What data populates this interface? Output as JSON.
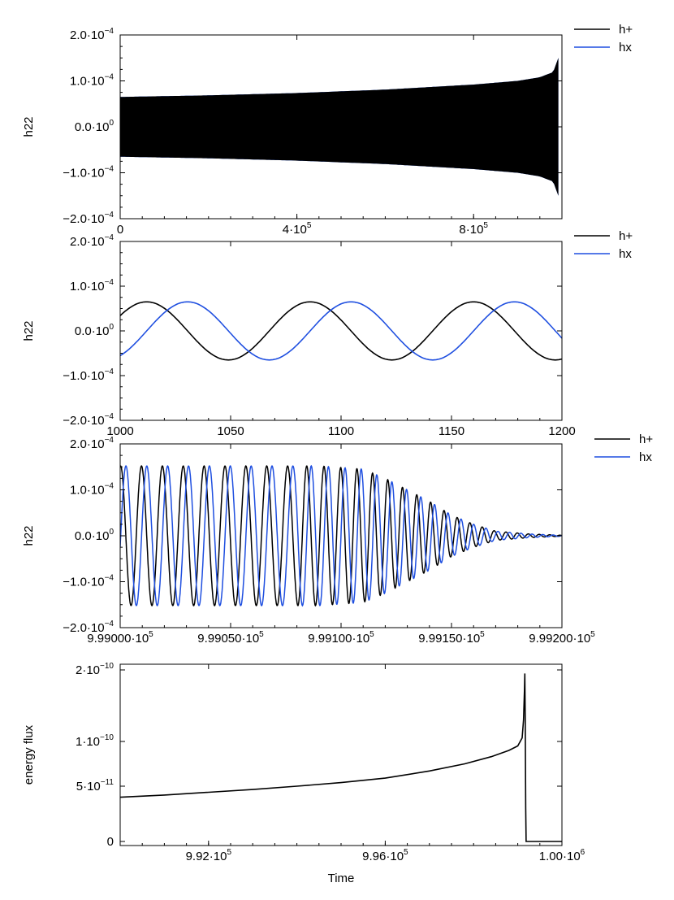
{
  "colors": {
    "h_plus": "#000000",
    "h_cross": "#1f4fe0",
    "h_cross_fill": "#0044ff",
    "flux": "#000000"
  },
  "chart_data": [
    {
      "type": "line",
      "ylabel": "h22",
      "xlabel": "",
      "xlim": [
        0,
        1000000
      ],
      "ylim": [
        -0.0002,
        0.0002
      ],
      "x_ticks": [
        0,
        400000,
        800000
      ],
      "x_tick_labels": [
        {
          "base": "0",
          "exp": ""
        },
        {
          "base": "4·10",
          "exp": "5"
        },
        {
          "base": "8·10",
          "exp": "5"
        }
      ],
      "y_ticks": [
        -0.0002,
        -0.0001,
        0,
        0.0001,
        0.0002
      ],
      "y_tick_labels": [
        {
          "base": "−2.0·10",
          "exp": "−4"
        },
        {
          "base": "−1.0·10",
          "exp": "−4"
        },
        {
          "base": "0.0·10",
          "exp": "0"
        },
        {
          "base": "1.0·10",
          "exp": "−4"
        },
        {
          "base": "2.0·10",
          "exp": "−4"
        }
      ],
      "legend": [
        "h+",
        "hx"
      ],
      "legend_position": "outside top-right",
      "series": [
        {
          "name": "h+",
          "envelope": {
            "x": [
              0,
              200000,
              400000,
              600000,
              800000,
              900000,
              950000,
              980000,
              992000
            ],
            "amp": [
              6.5e-05,
              6.85e-05,
              7.35e-05,
              8.1e-05,
              9.2e-05,
              0.0001,
              0.000108,
              0.000119,
              0.00015
            ]
          }
        },
        {
          "name": "hx",
          "envelope": {
            "x": [
              0,
              200000,
              400000,
              600000,
              800000,
              900000,
              950000,
              980000,
              992000
            ],
            "amp": [
              6.5e-05,
              6.85e-05,
              7.35e-05,
              8.1e-05,
              9.2e-05,
              0.0001,
              0.000108,
              0.000119,
              0.00015
            ]
          }
        }
      ]
    },
    {
      "type": "line",
      "ylabel": "h22",
      "xlabel": "",
      "xlim": [
        1000,
        1200
      ],
      "ylim": [
        -0.0002,
        0.0002
      ],
      "x_ticks": [
        1000,
        1050,
        1100,
        1150,
        1200
      ],
      "x_tick_labels": [
        {
          "base": "1000",
          "exp": ""
        },
        {
          "base": "1050",
          "exp": ""
        },
        {
          "base": "1100",
          "exp": ""
        },
        {
          "base": "1150",
          "exp": ""
        },
        {
          "base": "1200",
          "exp": ""
        }
      ],
      "y_ticks": [
        -0.0002,
        -0.0001,
        0,
        0.0001,
        0.0002
      ],
      "y_tick_labels": [
        {
          "base": "−2.0·10",
          "exp": "−4"
        },
        {
          "base": "−1.0·10",
          "exp": "−4"
        },
        {
          "base": "0.0·10",
          "exp": "0"
        },
        {
          "base": "1.0·10",
          "exp": "−4"
        },
        {
          "base": "2.0·10",
          "exp": "−4"
        }
      ],
      "legend": [
        "h+",
        "hx"
      ],
      "legend_position": "outside top-right",
      "series": [
        {
          "name": "h+",
          "amplitude": 6.5e-05,
          "period": 74,
          "peak_x": 1012
        },
        {
          "name": "hx",
          "amplitude": 6.5e-05,
          "period": 74,
          "peak_x": 1030.5
        }
      ]
    },
    {
      "type": "line",
      "ylabel": "h22",
      "xlabel": "",
      "xlim": [
        999000,
        999200
      ],
      "ylim": [
        -0.0002,
        0.0002
      ],
      "x_ticks": [
        999000,
        999050,
        999100,
        999150,
        999200
      ],
      "x_tick_labels": [
        {
          "base": "9.99000·10",
          "exp": "5"
        },
        {
          "base": "9.99050·10",
          "exp": "5"
        },
        {
          "base": "9.99100·10",
          "exp": "5"
        },
        {
          "base": "9.99150·10",
          "exp": "5"
        },
        {
          "base": "9.99200·10",
          "exp": "5"
        }
      ],
      "y_ticks": [
        -0.0002,
        -0.0001,
        0,
        0.0001,
        0.0002
      ],
      "y_tick_labels": [
        {
          "base": "−2.0·10",
          "exp": "−4"
        },
        {
          "base": "−1.0·10",
          "exp": "−4"
        },
        {
          "base": "0.0·10",
          "exp": "0"
        },
        {
          "base": "1.0·10",
          "exp": "−4"
        },
        {
          "base": "2.0·10",
          "exp": "−4"
        }
      ],
      "legend": [
        "h+",
        "hx"
      ],
      "legend_position": "outside top-right",
      "series": [
        {
          "name": "h+",
          "envelope": {
            "x": [
              999000,
              999090,
              999110,
              999120,
              999130,
              999140,
              999150,
              999160,
              999170,
              999185,
              999200
            ],
            "amp": [
              0.000152,
              0.000152,
              0.000145,
              0.000125,
              0.0001,
              7.5e-05,
              4.5e-05,
              2.5e-05,
              1e-05,
              4e-06,
              1e-06
            ]
          },
          "period": 9.45,
          "peak_x": 999000.2
        },
        {
          "name": "hx",
          "envelope": {
            "x": [
              999000,
              999090,
              999110,
              999120,
              999130,
              999140,
              999150,
              999160,
              999170,
              999185,
              999200
            ],
            "amp": [
              0.000152,
              0.000152,
              0.000145,
              0.000125,
              0.0001,
              7.5e-05,
              4.5e-05,
              2.5e-05,
              1e-05,
              4e-06,
              1e-06
            ]
          },
          "period": 9.45,
          "peak_x": 999002.6
        }
      ]
    },
    {
      "type": "line",
      "ylabel": "energy flux",
      "xlabel": "Time",
      "xlim": [
        990000,
        1000000
      ],
      "ylim": [
        0,
        2.2e-10
      ],
      "x_ticks": [
        992000,
        996000,
        1000000
      ],
      "x_tick_labels": [
        {
          "base": "9.92·10",
          "exp": "5"
        },
        {
          "base": "9.96·10",
          "exp": "5"
        },
        {
          "base": "1.00·10",
          "exp": "6"
        }
      ],
      "y_ticks": [
        0,
        5e-11,
        1e-10,
        2e-10
      ],
      "y_tick_labels": [
        {
          "base": "0",
          "exp": ""
        },
        {
          "base": "5·10",
          "exp": "−11"
        },
        {
          "base": "1·10",
          "exp": "−10"
        },
        {
          "base": "2·10",
          "exp": "−10"
        }
      ],
      "y_scale": "log-like (as printed)",
      "legend": [],
      "series": [
        {
          "name": "",
          "x": [
            990000,
            991000,
            992000,
            993000,
            994000,
            995000,
            996000,
            997000,
            997800,
            998400,
            998800,
            999000,
            999100,
            999130,
            999150,
            999160,
            999170,
            999180,
            999190,
            999200,
            1000000
          ],
          "y": [
            4e-11,
            4.2e-11,
            4.45e-11,
            4.7e-11,
            5e-11,
            5.4e-11,
            5.9e-11,
            6.7e-11,
            7.5e-11,
            8.3e-11,
            9e-11,
            9.5e-11,
            1.05e-10,
            1.3e-10,
            1.7e-10,
            1.95e-10,
            1.3e-10,
            3e-11,
            0,
            0,
            0
          ]
        }
      ]
    }
  ]
}
